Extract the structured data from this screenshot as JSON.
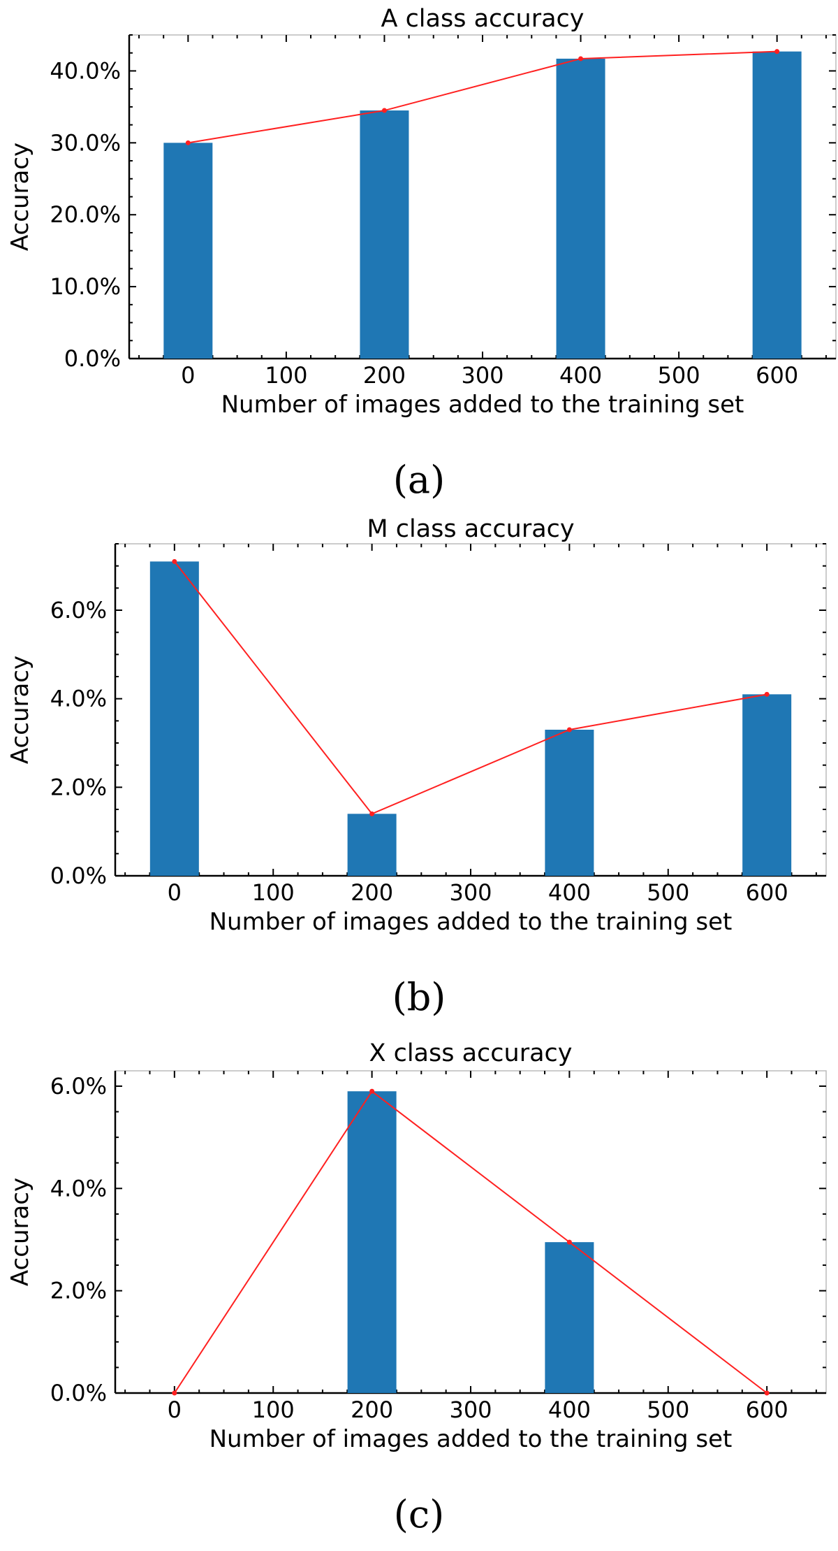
{
  "chart_data": [
    {
      "type": "bar",
      "title": "A class accuracy",
      "xlabel": "Number of images added to the training set",
      "ylabel": "Accuracy",
      "caption": "(a)",
      "x": [
        0,
        200,
        400,
        600
      ],
      "values": [
        30.0,
        34.5,
        41.7,
        42.7
      ],
      "line_values": [
        30.0,
        34.5,
        41.7,
        42.7
      ],
      "xticks": [
        0,
        100,
        200,
        300,
        400,
        500,
        600
      ],
      "xtick_labels": [
        "0",
        "100",
        "200",
        "300",
        "400",
        "500",
        "600"
      ],
      "yticks": [
        0,
        10,
        20,
        30,
        40
      ],
      "ytick_labels": [
        "0.0%",
        "10.0%",
        "20.0%",
        "30.0%",
        "40.0%"
      ],
      "xlim": [
        -60,
        660
      ],
      "ylim": [
        0,
        45
      ],
      "bar_color": "#1f77b4",
      "line_color": "#ff2020"
    },
    {
      "type": "bar",
      "title": "M class accuracy",
      "xlabel": "Number of images added to the training set",
      "ylabel": "Accuracy",
      "caption": "(b)",
      "x": [
        0,
        200,
        400,
        600
      ],
      "values": [
        7.1,
        1.4,
        3.3,
        4.1
      ],
      "line_values": [
        7.1,
        1.4,
        3.3,
        4.1
      ],
      "xticks": [
        0,
        100,
        200,
        300,
        400,
        500,
        600
      ],
      "xtick_labels": [
        "0",
        "100",
        "200",
        "300",
        "400",
        "500",
        "600"
      ],
      "yticks": [
        0,
        2,
        4,
        6
      ],
      "ytick_labels": [
        "0.0%",
        "2.0%",
        "4.0%",
        "6.0%"
      ],
      "xlim": [
        -60,
        660
      ],
      "ylim": [
        0,
        7.5
      ],
      "bar_color": "#1f77b4",
      "line_color": "#ff2020"
    },
    {
      "type": "bar",
      "title": "X class accuracy",
      "xlabel": "Number of images added to the training set",
      "ylabel": "Accuracy",
      "caption": "(c)",
      "x": [
        0,
        200,
        400,
        600
      ],
      "values": [
        0.0,
        5.9,
        2.95,
        0.0
      ],
      "line_values": [
        0.0,
        5.9,
        2.95,
        0.0
      ],
      "xticks": [
        0,
        100,
        200,
        300,
        400,
        500,
        600
      ],
      "xtick_labels": [
        "0",
        "100",
        "200",
        "300",
        "400",
        "500",
        "600"
      ],
      "yticks": [
        0,
        2,
        4,
        6
      ],
      "ytick_labels": [
        "0.0%",
        "2.0%",
        "4.0%",
        "6.0%"
      ],
      "xlim": [
        -60,
        660
      ],
      "ylim": [
        0,
        6.3
      ],
      "bar_color": "#1f77b4",
      "line_color": "#ff2020"
    }
  ]
}
